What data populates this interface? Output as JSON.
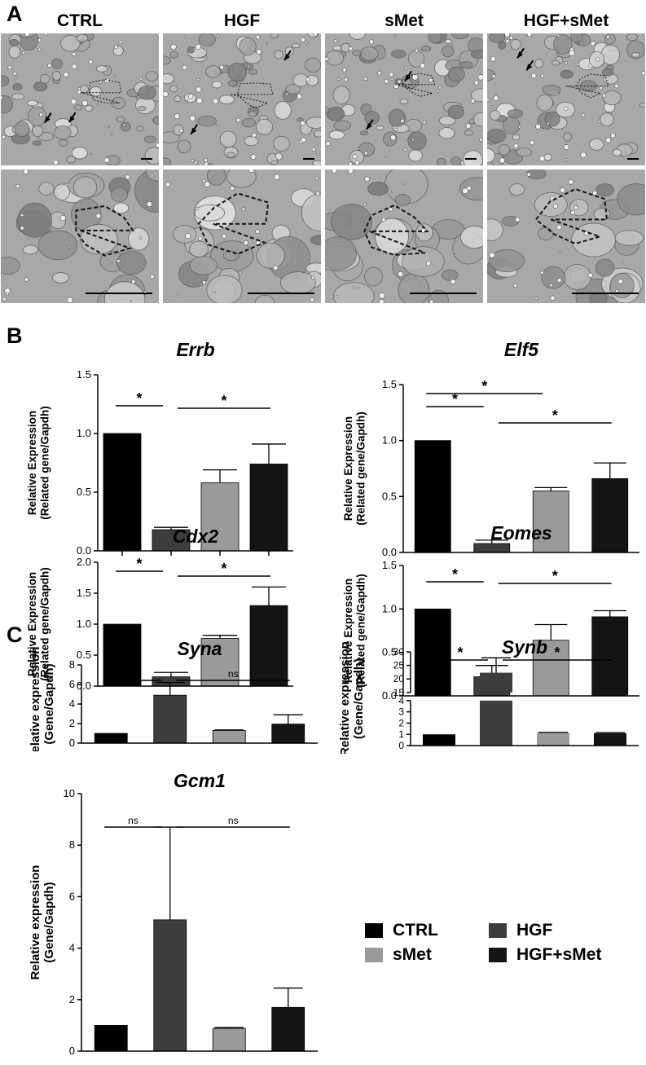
{
  "panels": {
    "a": "A",
    "b": "B",
    "c": "C"
  },
  "conditions": [
    "CTRL",
    "HGF",
    "sMet",
    "HGF+sMet"
  ],
  "colors": {
    "CTRL": "#000000",
    "HGF": "#3d3d3d",
    "sMet": "#9a9a9a",
    "HGF+sMet": "#141414"
  },
  "legend": {
    "items": [
      {
        "label": "CTRL",
        "color": "#000000"
      },
      {
        "label": "HGF",
        "color": "#3d3d3d"
      },
      {
        "label": "sMet",
        "color": "#9a9a9a"
      },
      {
        "label": "HGF+sMet",
        "color": "#141414"
      }
    ]
  },
  "chart_data": [
    {
      "type": "bar",
      "title": "Errb",
      "ylabel": [
        "Relative Expression",
        "(Related gene/Gapdh)"
      ],
      "categories": [
        "CTRL",
        "HGF",
        "sMet",
        "HGF+sMet"
      ],
      "values": [
        1.0,
        0.18,
        0.58,
        0.74
      ],
      "errors": [
        0,
        0.02,
        0.11,
        0.17
      ],
      "ylim": [
        0,
        1.5
      ],
      "yticks": [
        "0.0",
        "0.5",
        "1.0",
        "1.5"
      ],
      "significance": [
        {
          "from": 0,
          "to": 1,
          "label": "*"
        },
        {
          "from": 1,
          "to": 3,
          "label": "*"
        }
      ],
      "grid": false
    },
    {
      "type": "bar",
      "title": "Elf5",
      "ylabel": [
        "Relative Expression",
        "(Related gene/Gapdh)"
      ],
      "categories": [
        "CTRL",
        "HGF",
        "sMet",
        "HGF+sMet"
      ],
      "values": [
        1.0,
        0.08,
        0.55,
        0.66
      ],
      "errors": [
        0,
        0.03,
        0.03,
        0.14
      ],
      "ylim": [
        0,
        1.5
      ],
      "yticks": [
        "0.0",
        "0.5",
        "1.0",
        "1.5"
      ],
      "significance": [
        {
          "from": 0,
          "to": 2,
          "label": "*"
        },
        {
          "from": 0,
          "to": 1,
          "label": "*"
        },
        {
          "from": 1,
          "to": 3,
          "label": "*"
        }
      ],
      "grid": false
    },
    {
      "type": "bar",
      "title": "Cdx2",
      "ylabel": [
        "Relative Expression",
        "(Related gene/Gapdh)"
      ],
      "categories": [
        "CTRL",
        "HGF",
        "sMet",
        "HGF+sMet"
      ],
      "values": [
        1.0,
        0.15,
        0.77,
        1.3
      ],
      "errors": [
        0,
        0.07,
        0.05,
        0.3
      ],
      "ylim": [
        0,
        2.0
      ],
      "yticks": [
        "0.0",
        "0.5",
        "1.0",
        "1.5",
        "2.0"
      ],
      "significance": [
        {
          "from": 0,
          "to": 1,
          "label": "*"
        },
        {
          "from": 1,
          "to": 3,
          "label": "*"
        }
      ],
      "grid": false
    },
    {
      "type": "bar",
      "title": "Eomes",
      "ylabel": [
        "Relative Expression",
        "(Related gene/Gapdh)"
      ],
      "categories": [
        "CTRL",
        "HGF",
        "sMet",
        "HGF+sMet"
      ],
      "values": [
        1.0,
        0.22,
        0.64,
        0.91
      ],
      "errors": [
        0,
        0.13,
        0.18,
        0.07
      ],
      "ylim": [
        0,
        1.5
      ],
      "yticks": [
        "0.0",
        "0.5",
        "1.0",
        "1.5"
      ],
      "significance": [
        {
          "from": 0,
          "to": 1,
          "label": "*"
        },
        {
          "from": 1,
          "to": 3,
          "label": "*"
        }
      ],
      "grid": false
    },
    {
      "type": "bar",
      "title": "Syna",
      "ylabel": [
        "Relative expression",
        "(Gene/Gapdh)"
      ],
      "categories": [
        "CTRL",
        "HGF",
        "sMet",
        "HGF+sMet"
      ],
      "values": [
        1.0,
        4.9,
        1.3,
        1.95
      ],
      "errors": [
        0,
        1.3,
        0.05,
        0.95
      ],
      "ylim": [
        0,
        8
      ],
      "yticks": [
        "0",
        "2",
        "4",
        "6",
        "8"
      ],
      "significance": [
        {
          "from": 0,
          "to": 1,
          "label": "*"
        },
        {
          "from": 1,
          "to": 3,
          "label": "ns"
        }
      ],
      "grid": false
    },
    {
      "type": "bar",
      "title": "Synb",
      "ylabel": [
        "Relative expression",
        "(Gene/Gapdh)"
      ],
      "categories": [
        "CTRL",
        "HGF",
        "sMet",
        "HGF+sMet"
      ],
      "values": [
        1.0,
        22.3,
        1.15,
        1.1
      ],
      "errors": [
        0,
        5.5,
        0.03,
        0.06
      ],
      "ylim": [
        0,
        30
      ],
      "broken_axis": {
        "lower": [
          0,
          4
        ],
        "upper": [
          15,
          30
        ]
      },
      "yticks_lower": [
        "0",
        "1",
        "2",
        "3",
        "4"
      ],
      "yticks_upper": [
        "15",
        "20",
        "25",
        "30"
      ],
      "significance": [
        {
          "from": 0,
          "to": 1,
          "label": "*"
        },
        {
          "from": 1,
          "to": 3,
          "label": "*"
        }
      ],
      "grid": false
    },
    {
      "type": "bar",
      "title": "Gcm1",
      "ylabel": [
        "Relative expression",
        "(Gene/Gapdh)"
      ],
      "categories": [
        "CTRL",
        "HGF",
        "sMet",
        "HGF+sMet"
      ],
      "values": [
        1.0,
        5.1,
        0.88,
        1.7
      ],
      "errors": [
        0,
        3.6,
        0.04,
        0.75
      ],
      "ylim": [
        0,
        10
      ],
      "yticks": [
        "0",
        "2",
        "4",
        "6",
        "8",
        "10"
      ],
      "significance": [
        {
          "from": 0,
          "to": 1,
          "label": "ns"
        },
        {
          "from": 1,
          "to": 3,
          "label": "ns"
        }
      ],
      "grid": false
    }
  ]
}
